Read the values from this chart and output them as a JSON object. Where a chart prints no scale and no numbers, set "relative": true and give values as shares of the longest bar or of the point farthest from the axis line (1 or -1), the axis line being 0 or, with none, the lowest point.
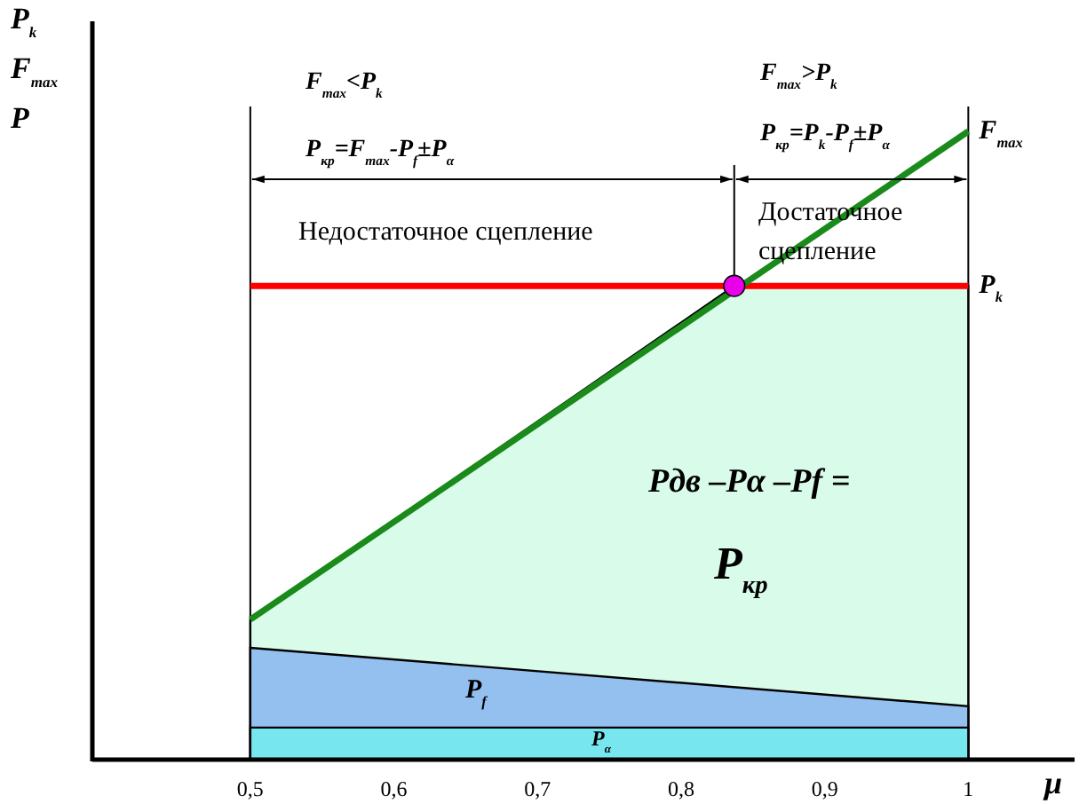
{
  "chart_data": {
    "type": "area",
    "relative": true,
    "xlabel": "μ",
    "ylabel": "P$_{k}$ F$_{max}$ P",
    "xlim": [
      0.39,
      1.074
    ],
    "xticks": [
      {
        "value": 0.5,
        "label": "0,5"
      },
      {
        "value": 0.6,
        "label": "0,6"
      },
      {
        "value": 0.7,
        "label": "0,7"
      },
      {
        "value": 0.8,
        "label": "0,8"
      },
      {
        "value": 0.9,
        "label": "0,9"
      },
      {
        "value": 1,
        "label": "1"
      }
    ],
    "series": [
      {
        "color": "#d9fbea",
        "x": [
          0.5,
          0.837,
          1
        ],
        "values": [
          0.223,
          0.754,
          0.754
        ]
      },
      {
        "name": "P$_{f}$",
        "color": "#94c0f0",
        "x": [
          0.5,
          1
        ],
        "values": [
          0.178,
          0.085
        ]
      },
      {
        "name": "P$_{α}$",
        "color": "#77e6ef",
        "x": [
          0.5,
          1
        ],
        "values": [
          0.051,
          0.051
        ]
      },
      {
        "type": "line",
        "name": "P$_{k}$",
        "color": "#ff0000",
        "x": [
          0.5,
          1
        ],
        "values": [
          0.754,
          0.754
        ]
      },
      {
        "type": "line",
        "name": "F$_{max}$",
        "color": "#1a8a1a",
        "x": [
          0.5,
          1
        ],
        "values": [
          0.223,
          1
        ]
      },
      {
        "type": "scatter",
        "color": "#e800e8",
        "marker": "circle",
        "x": [
          0.837
        ],
        "values": [
          0.754
        ]
      }
    ],
    "ref_lines": [
      {
        "axis": "x",
        "value": 0.5,
        "color": "#000000"
      },
      {
        "axis": "x",
        "value": 0.837,
        "color": "#000000"
      },
      {
        "axis": "x",
        "value": 1,
        "color": "#000000"
      }
    ],
    "annotations": [
      "F$_{max}$<P$_{k}$",
      "P$_{кр}$=F$_{max}$-P$_{f}$±P$_{α}$",
      "F$_{max}$>P$_{k}$",
      "P$_{кр}$=P$_{k}$-P$_{f}$±P$_{α}$",
      "Недостаточное сцепление",
      "Достаточное сцепление",
      "Pдв –Pα –Pf =",
      "P$_{кр}$"
    ]
  }
}
